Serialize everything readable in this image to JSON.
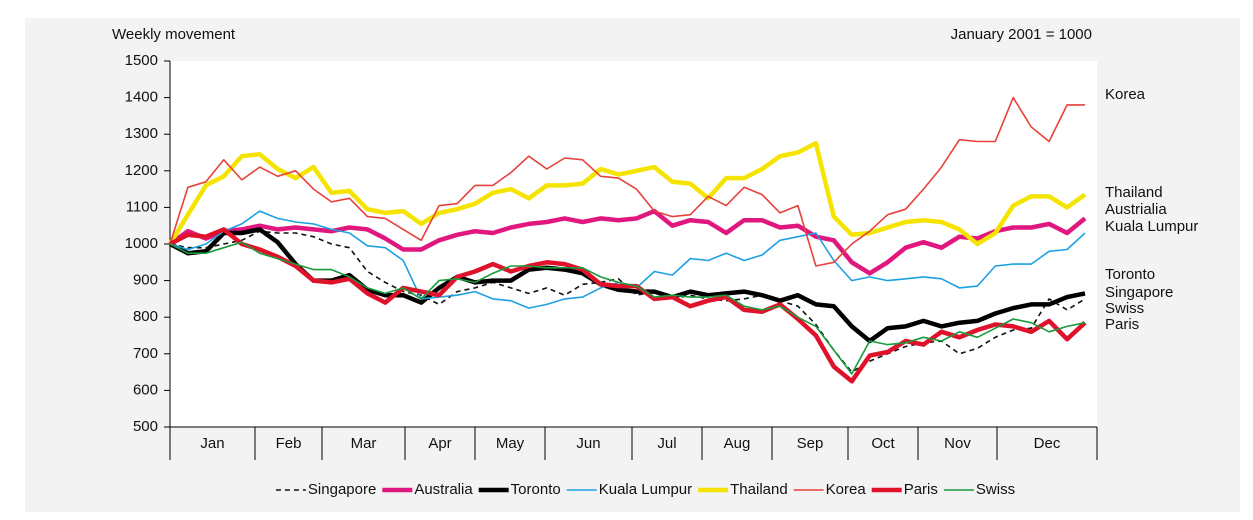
{
  "chart_data": {
    "type": "line",
    "title": "Weekly movement",
    "note": "January 2001 = 1000",
    "x_labels": [
      "Jan",
      "Feb",
      "Mar",
      "Apr",
      "May",
      "Jun",
      "Jul",
      "Aug",
      "Sep",
      "Oct",
      "Nov",
      "Dec"
    ],
    "ylim": [
      500,
      1500
    ],
    "yticks": [
      500,
      600,
      700,
      800,
      900,
      1000,
      1100,
      1200,
      1300,
      1400,
      1500
    ],
    "end_labels": [
      "Korea",
      "Thailand",
      "Austrialia",
      "Kuala Lumpur",
      "Toronto",
      "Singapore",
      "Swiss",
      "Paris"
    ],
    "legend": "bottom",
    "series": [
      {
        "name": "Singapore",
        "color": "#111111",
        "style": "dashed",
        "thick": false,
        "values": [
          1000,
          990,
          990,
          1000,
          1010,
          1035,
          1030,
          1030,
          1020,
          1000,
          990,
          925,
          895,
          870,
          860,
          835,
          870,
          880,
          895,
          880,
          865,
          880,
          860,
          890,
          895,
          905,
          860,
          870,
          850,
          860,
          850,
          845,
          850,
          860,
          845,
          830,
          780,
          710,
          650,
          680,
          700,
          720,
          730,
          735,
          700,
          715,
          745,
          765,
          770,
          850,
          820,
          850
        ]
      },
      {
        "name": "Australia",
        "color": "#e0177f",
        "style": "solid",
        "thick": true,
        "values": [
          1000,
          1035,
          1015,
          1035,
          1040,
          1050,
          1040,
          1045,
          1040,
          1035,
          1045,
          1040,
          1015,
          985,
          985,
          1010,
          1025,
          1035,
          1030,
          1045,
          1055,
          1060,
          1070,
          1060,
          1070,
          1065,
          1070,
          1090,
          1050,
          1065,
          1060,
          1030,
          1065,
          1065,
          1045,
          1050,
          1020,
          1010,
          950,
          920,
          950,
          990,
          1005,
          990,
          1020,
          1015,
          1035,
          1045,
          1045,
          1055,
          1030,
          1070
        ]
      },
      {
        "name": "Toronto",
        "color": "#000000",
        "style": "solid",
        "thick": true,
        "values": [
          1000,
          975,
          980,
          1030,
          1030,
          1040,
          1005,
          945,
          900,
          900,
          915,
          875,
          860,
          860,
          840,
          880,
          910,
          895,
          900,
          900,
          930,
          935,
          930,
          920,
          890,
          875,
          870,
          870,
          855,
          870,
          860,
          865,
          870,
          860,
          845,
          860,
          835,
          830,
          775,
          735,
          770,
          775,
          790,
          775,
          785,
          790,
          810,
          825,
          835,
          835,
          855,
          865
        ]
      },
      {
        "name": "Kuala Lumpur",
        "color": "#1da1e2",
        "style": "solid",
        "thick": false,
        "values": [
          1000,
          985,
          1000,
          1035,
          1055,
          1090,
          1070,
          1060,
          1055,
          1040,
          1030,
          995,
          990,
          955,
          850,
          855,
          860,
          870,
          850,
          845,
          825,
          835,
          850,
          855,
          880,
          895,
          880,
          925,
          915,
          960,
          955,
          975,
          955,
          970,
          1010,
          1020,
          1030,
          955,
          900,
          910,
          900,
          905,
          910,
          905,
          880,
          885,
          940,
          945,
          945,
          980,
          985,
          1030
        ]
      },
      {
        "name": "Thailand",
        "color": "#f5e400",
        "style": "solid",
        "thick": true,
        "values": [
          1000,
          1080,
          1160,
          1185,
          1240,
          1245,
          1205,
          1180,
          1210,
          1140,
          1145,
          1095,
          1085,
          1090,
          1055,
          1085,
          1095,
          1110,
          1140,
          1150,
          1125,
          1160,
          1160,
          1165,
          1205,
          1190,
          1200,
          1210,
          1170,
          1165,
          1125,
          1180,
          1180,
          1205,
          1240,
          1250,
          1275,
          1075,
          1025,
          1030,
          1045,
          1060,
          1065,
          1060,
          1040,
          1000,
          1030,
          1105,
          1130,
          1130,
          1100,
          1135
        ]
      },
      {
        "name": "Korea",
        "color": "#e8413b",
        "style": "solid",
        "thick": false,
        "values": [
          1000,
          1155,
          1170,
          1230,
          1175,
          1210,
          1185,
          1200,
          1150,
          1115,
          1125,
          1075,
          1070,
          1040,
          1010,
          1105,
          1110,
          1160,
          1160,
          1195,
          1240,
          1205,
          1235,
          1230,
          1185,
          1180,
          1150,
          1090,
          1075,
          1080,
          1130,
          1105,
          1155,
          1135,
          1085,
          1105,
          940,
          950,
          1000,
          1035,
          1080,
          1095,
          1150,
          1210,
          1285,
          1280,
          1280,
          1400,
          1320,
          1280,
          1380,
          1380
        ]
      },
      {
        "name": "Paris",
        "color": "#e0122b",
        "style": "solid",
        "thick": true,
        "values": [
          1000,
          1025,
          1020,
          1040,
          1000,
          985,
          965,
          940,
          900,
          895,
          905,
          865,
          840,
          880,
          870,
          860,
          910,
          925,
          945,
          925,
          940,
          950,
          945,
          930,
          890,
          885,
          885,
          850,
          855,
          830,
          845,
          855,
          820,
          815,
          835,
          795,
          750,
          665,
          625,
          695,
          705,
          735,
          725,
          760,
          745,
          765,
          780,
          775,
          760,
          790,
          740,
          785
        ]
      },
      {
        "name": "Swiss",
        "color": "#1a9a3c",
        "style": "solid",
        "thick": false,
        "values": [
          1000,
          975,
          975,
          990,
          1005,
          975,
          960,
          945,
          930,
          930,
          910,
          880,
          865,
          880,
          850,
          900,
          905,
          895,
          920,
          940,
          940,
          935,
          935,
          935,
          910,
          895,
          885,
          855,
          860,
          855,
          855,
          860,
          830,
          820,
          830,
          800,
          775,
          710,
          645,
          735,
          725,
          730,
          745,
          735,
          760,
          745,
          770,
          795,
          785,
          760,
          775,
          785
        ]
      }
    ]
  }
}
